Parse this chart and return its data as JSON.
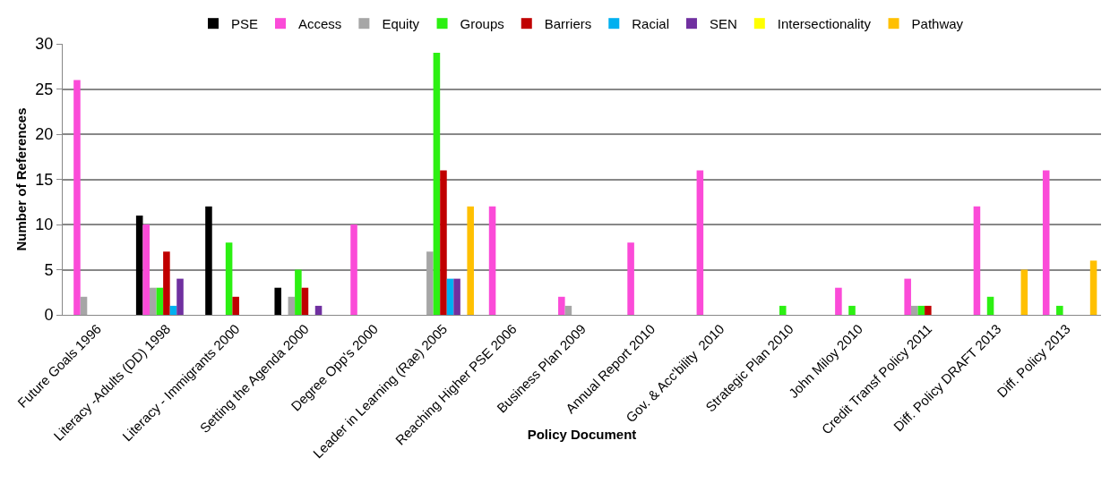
{
  "chart_data": {
    "type": "bar",
    "xlabel": "Policy Document",
    "ylabel": "Number of References",
    "categories": [
      "Future Goals 1996",
      "Literacy -Adults (DD) 1998",
      "Literacy - Immigrants 2000",
      "Setting the Agenda 2000",
      "Degree Opp's 2000",
      "Leader in Learning (Rae) 2005",
      "Reaching Higher PSE 2006",
      "Business Plan 2009",
      "Annual Report 2010",
      "Gov. & Acc'bility  2010",
      "Strategic Plan 2010",
      "John Miloy 2010",
      "Credit Transf Policy 2011",
      "Diff. Policy DRAFT 2013",
      "Diff. Policy 2013"
    ],
    "series": [
      {
        "name": "PSE",
        "color": "#000000",
        "values": [
          0,
          11,
          12,
          3,
          0,
          0,
          0,
          0,
          0,
          0,
          0,
          0,
          0,
          0,
          0
        ]
      },
      {
        "name": "Access",
        "color": "#fb4bd8",
        "values": [
          26,
          10,
          0,
          0,
          10,
          0,
          12,
          2,
          8,
          16,
          0,
          3,
          4,
          12,
          16
        ]
      },
      {
        "name": "Equity",
        "color": "#a6a6a6",
        "values": [
          2,
          3,
          0,
          2,
          0,
          7,
          0,
          1,
          0,
          0,
          0,
          0,
          1,
          0,
          0
        ]
      },
      {
        "name": "Groups",
        "color": "#2cf012",
        "values": [
          0,
          3,
          8,
          5,
          0,
          29,
          0,
          0,
          0,
          0,
          1,
          1,
          1,
          2,
          1
        ]
      },
      {
        "name": "Barriers",
        "color": "#c00000",
        "values": [
          0,
          7,
          2,
          3,
          0,
          16,
          0,
          0,
          0,
          0,
          0,
          0,
          1,
          0,
          0
        ]
      },
      {
        "name": "Racial",
        "color": "#00b0f0",
        "values": [
          0,
          1,
          0,
          0,
          0,
          4,
          0,
          0,
          0,
          0,
          0,
          0,
          0,
          0,
          0
        ]
      },
      {
        "name": "SEN",
        "color": "#7030a0",
        "values": [
          0,
          4,
          0,
          1,
          0,
          4,
          0,
          0,
          0,
          0,
          0,
          0,
          0,
          0,
          0
        ]
      },
      {
        "name": "Intersectionality",
        "color": "#ffff00",
        "values": [
          0,
          0,
          0,
          0,
          0,
          0,
          0,
          0,
          0,
          0,
          0,
          0,
          0,
          0,
          0
        ]
      },
      {
        "name": "Pathway",
        "color": "#ffc000",
        "values": [
          0,
          0,
          0,
          0,
          0,
          12,
          0,
          0,
          0,
          0,
          0,
          0,
          0,
          5,
          6
        ]
      }
    ],
    "ylim": [
      0,
      30
    ],
    "yticks": [
      0,
      5,
      10,
      15,
      20,
      25,
      30
    ],
    "grid": "y",
    "legend": "top"
  }
}
